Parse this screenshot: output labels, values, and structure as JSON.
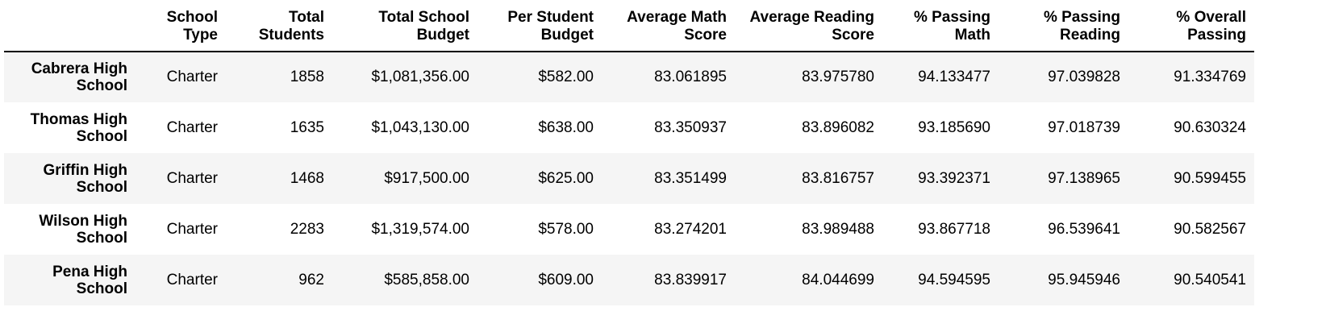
{
  "table": {
    "index_header": "",
    "columns": [
      "School Type",
      "Total Students",
      "Total School Budget",
      "Per Student Budget",
      "Average Math Score",
      "Average Reading Score",
      "% Passing Math",
      "% Passing Reading",
      "% Overall Passing"
    ],
    "rows": [
      {
        "name": "Cabrera High School",
        "cells": [
          "Charter",
          "1858",
          "$1,081,356.00",
          "$582.00",
          "83.061895",
          "83.975780",
          "94.133477",
          "97.039828",
          "91.334769"
        ]
      },
      {
        "name": "Thomas High School",
        "cells": [
          "Charter",
          "1635",
          "$1,043,130.00",
          "$638.00",
          "83.350937",
          "83.896082",
          "93.185690",
          "97.018739",
          "90.630324"
        ]
      },
      {
        "name": "Griffin High School",
        "cells": [
          "Charter",
          "1468",
          "$917,500.00",
          "$625.00",
          "83.351499",
          "83.816757",
          "93.392371",
          "97.138965",
          "90.599455"
        ]
      },
      {
        "name": "Wilson High School",
        "cells": [
          "Charter",
          "2283",
          "$1,319,574.00",
          "$578.00",
          "83.274201",
          "83.989488",
          "93.867718",
          "96.539641",
          "90.582567"
        ]
      },
      {
        "name": "Pena High School",
        "cells": [
          "Charter",
          "962",
          "$585,858.00",
          "$609.00",
          "83.839917",
          "84.044699",
          "94.594595",
          "95.945946",
          "90.540541"
        ]
      }
    ]
  },
  "colors": {
    "row_stripe": "#f5f5f5",
    "header_rule": "#000000",
    "text": "#000000"
  }
}
